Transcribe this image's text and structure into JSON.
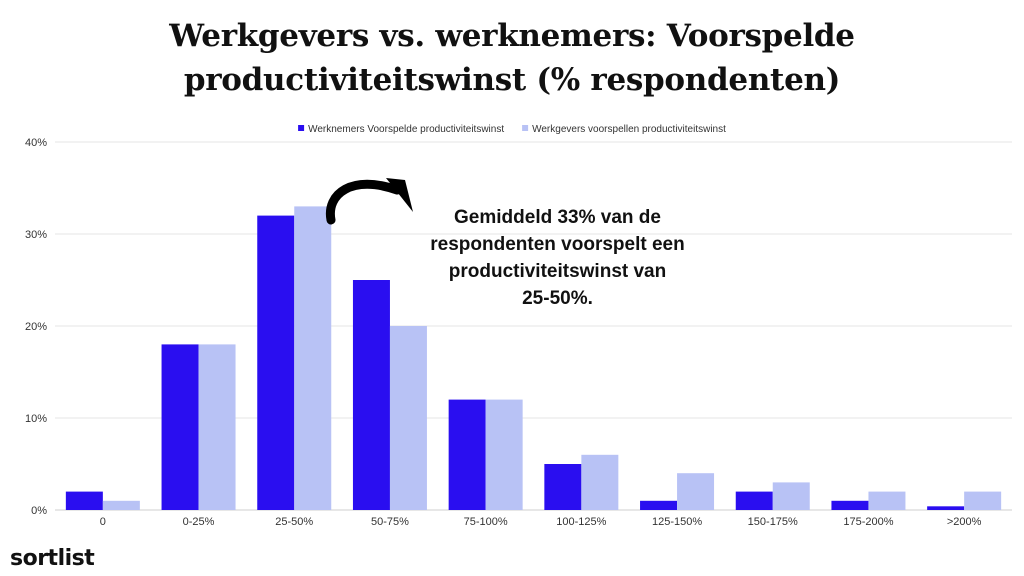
{
  "chart_data": {
    "type": "bar",
    "title_lines": [
      "Werkgevers vs. werknemers: Voorspelde",
      "productiviteitswinst (% respondenten)"
    ],
    "categories": [
      "0",
      "0-25%",
      "25-50%",
      "50-75%",
      "75-100%",
      "100-125%",
      "125-150%",
      "150-175%",
      "175-200%",
      ">200%"
    ],
    "series": [
      {
        "name": "Werknemers Voorspelde productiviteitswinst",
        "color": "#2a0ef0",
        "values": [
          2,
          18,
          32,
          25,
          12,
          5,
          1,
          2,
          1,
          0.4
        ]
      },
      {
        "name": "Werkgevers voorspellen productiviteitswinst",
        "color": "#b8c2f5",
        "values": [
          1,
          18,
          33,
          20,
          12,
          6,
          4,
          3,
          2,
          2
        ]
      }
    ],
    "y_ticks": [
      "0%",
      "10%",
      "20%",
      "30%",
      "40%"
    ],
    "ylim": [
      0,
      40
    ],
    "grid": true,
    "legend": "top-center",
    "annotation_lines": [
      "Gemiddeld 33% van de",
      "respondenten voorspelt een",
      "productiviteitswinst van",
      "25-50%."
    ]
  },
  "branding": {
    "logo": "sortlist"
  }
}
